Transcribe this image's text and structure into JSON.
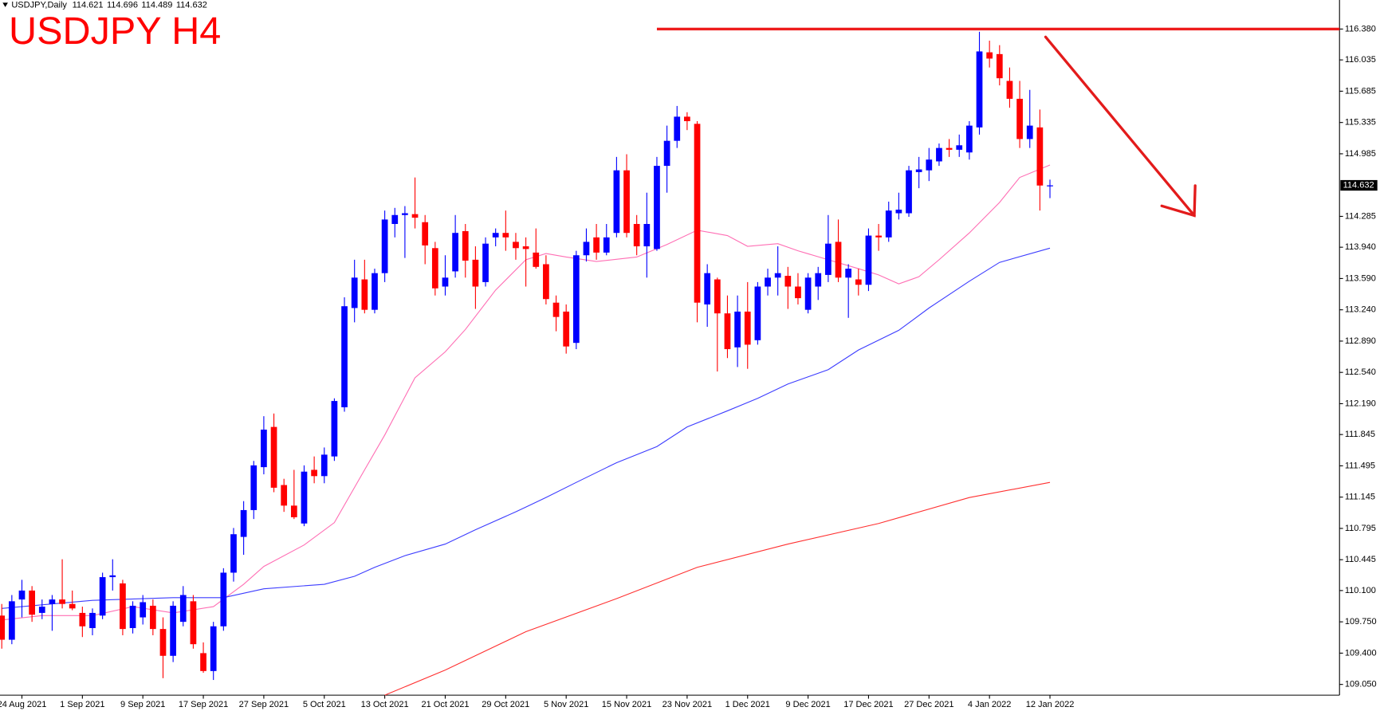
{
  "chart_data": {
    "type": "candlestick",
    "header_symbol": "USDJPY,Daily",
    "title": "USDJPY H4",
    "up_color": "#0000ff",
    "down_color": "#ff0000",
    "ylim": [
      108.93,
      116.705
    ],
    "yticks": [
      {
        "value": 116.38,
        "label": "116.380"
      },
      116.035,
      115.685,
      115.335,
      114.985,
      114.285,
      {
        "value": 113.94,
        "label": "113.940"
      },
      {
        "value": 113.59,
        "label": "113.590"
      },
      {
        "value": 113.24,
        "label": "113.240"
      },
      {
        "value": 112.89,
        "label": "112.890"
      },
      {
        "value": 112.54,
        "label": "112.540"
      },
      {
        "value": 112.19,
        "label": "112.190"
      },
      111.845,
      111.495,
      111.145,
      110.795,
      110.445,
      {
        "value": 110.1,
        "label": "110.100"
      },
      {
        "value": 109.75,
        "label": "109.750"
      },
      {
        "value": 109.4,
        "label": "109.400"
      },
      {
        "value": 109.05,
        "label": "109.050"
      }
    ],
    "categories": [
      null,
      null,
      "24 Aug 2021",
      null,
      null,
      null,
      null,
      null,
      "1 Sep 2021",
      null,
      null,
      null,
      null,
      null,
      "9 Sep 2021",
      null,
      null,
      null,
      null,
      null,
      "17 Sep 2021",
      null,
      null,
      null,
      null,
      null,
      "27 Sep 2021",
      null,
      null,
      null,
      null,
      null,
      "5 Oct 2021",
      null,
      null,
      null,
      null,
      null,
      "13 Oct 2021",
      null,
      null,
      null,
      null,
      null,
      "21 Oct 2021",
      null,
      null,
      null,
      null,
      null,
      "29 Oct 2021",
      null,
      null,
      null,
      null,
      null,
      "5 Nov 2021",
      null,
      null,
      null,
      null,
      null,
      "15 Nov 2021",
      null,
      null,
      null,
      null,
      null,
      "23 Nov 2021",
      null,
      null,
      null,
      null,
      null,
      "1 Dec 2021",
      null,
      null,
      null,
      null,
      null,
      "9 Dec 2021",
      null,
      null,
      null,
      null,
      null,
      "17 Dec 2021",
      null,
      null,
      null,
      null,
      null,
      "27 Dec 2021",
      null,
      null,
      null,
      null,
      null,
      "4 Jan 2022",
      null,
      null,
      null,
      null,
      null,
      "12 Jan 2022"
    ],
    "ohlc": [
      [
        109.82,
        109.95,
        109.45,
        109.55
      ],
      [
        109.55,
        110.05,
        109.5,
        109.98
      ],
      [
        110.0,
        110.22,
        109.8,
        110.1
      ],
      [
        110.1,
        110.15,
        109.75,
        109.83
      ],
      [
        109.85,
        110.0,
        109.78,
        109.92
      ],
      [
        109.95,
        110.05,
        109.65,
        110.0
      ],
      [
        110.0,
        110.45,
        109.9,
        109.95
      ],
      [
        109.95,
        110.1,
        109.88,
        109.9
      ],
      [
        109.85,
        109.92,
        109.58,
        109.7
      ],
      [
        109.68,
        109.9,
        109.6,
        109.85
      ],
      [
        109.82,
        110.3,
        109.78,
        110.25
      ],
      [
        110.25,
        110.45,
        110.1,
        110.27
      ],
      [
        110.18,
        110.22,
        109.6,
        109.67
      ],
      [
        109.68,
        109.98,
        109.62,
        109.93
      ],
      [
        109.8,
        110.05,
        109.72,
        109.97
      ],
      [
        109.93,
        110.0,
        109.6,
        109.67
      ],
      [
        109.67,
        109.8,
        109.12,
        109.37
      ],
      [
        109.37,
        109.98,
        109.3,
        109.93
      ],
      [
        109.75,
        110.15,
        109.7,
        110.05
      ],
      [
        109.98,
        110.05,
        109.45,
        109.5
      ],
      [
        109.4,
        109.52,
        109.18,
        109.2
      ],
      [
        109.2,
        109.75,
        109.1,
        109.7
      ],
      [
        109.7,
        110.35,
        109.65,
        110.3
      ],
      [
        110.3,
        110.8,
        110.2,
        110.73
      ],
      [
        110.7,
        111.1,
        110.5,
        111.0
      ],
      [
        111.0,
        111.55,
        110.9,
        111.5
      ],
      [
        111.48,
        112.05,
        111.4,
        111.9
      ],
      [
        111.93,
        112.08,
        111.2,
        111.25
      ],
      [
        111.28,
        111.35,
        110.98,
        111.05
      ],
      [
        111.05,
        111.45,
        110.9,
        110.92
      ],
      [
        110.85,
        111.5,
        110.82,
        111.43
      ],
      [
        111.45,
        111.6,
        111.3,
        111.38
      ],
      [
        111.38,
        111.7,
        111.3,
        111.62
      ],
      [
        111.6,
        112.25,
        111.55,
        112.22
      ],
      [
        112.15,
        113.38,
        112.1,
        113.28
      ],
      [
        113.26,
        113.8,
        113.1,
        113.6
      ],
      [
        113.58,
        113.8,
        113.2,
        113.24
      ],
      [
        113.24,
        113.7,
        113.2,
        113.65
      ],
      [
        113.65,
        114.35,
        113.55,
        114.25
      ],
      [
        114.2,
        114.38,
        114.05,
        114.3
      ],
      [
        114.3,
        114.4,
        113.82,
        114.32
      ],
      [
        114.31,
        114.72,
        114.15,
        114.27
      ],
      [
        114.22,
        114.3,
        113.75,
        113.96
      ],
      [
        113.93,
        114.0,
        113.4,
        113.48
      ],
      [
        113.5,
        113.85,
        113.4,
        113.6
      ],
      [
        113.67,
        114.3,
        113.6,
        114.1
      ],
      [
        114.12,
        114.2,
        113.6,
        113.79
      ],
      [
        113.8,
        113.95,
        113.25,
        113.5
      ],
      [
        113.55,
        114.05,
        113.5,
        113.98
      ],
      [
        114.05,
        114.15,
        113.95,
        114.1
      ],
      [
        114.1,
        114.35,
        113.9,
        114.05
      ],
      [
        114.0,
        114.1,
        113.8,
        113.93
      ],
      [
        113.95,
        114.05,
        113.5,
        113.92
      ],
      [
        113.88,
        114.15,
        113.7,
        113.72
      ],
      [
        113.75,
        113.85,
        113.3,
        113.36
      ],
      [
        113.32,
        113.4,
        113.0,
        113.16
      ],
      [
        113.22,
        113.3,
        112.75,
        112.83
      ],
      [
        112.87,
        113.9,
        112.8,
        113.85
      ],
      [
        113.85,
        114.15,
        113.78,
        114.0
      ],
      [
        114.05,
        114.2,
        113.8,
        113.88
      ],
      [
        113.88,
        114.2,
        113.85,
        114.05
      ],
      [
        114.1,
        114.95,
        114.05,
        114.8
      ],
      [
        114.8,
        114.98,
        114.05,
        114.1
      ],
      [
        114.2,
        114.3,
        113.85,
        113.95
      ],
      [
        113.95,
        114.55,
        113.6,
        114.2
      ],
      [
        113.92,
        114.95,
        113.9,
        114.85
      ],
      [
        114.85,
        115.3,
        114.55,
        115.13
      ],
      [
        115.13,
        115.52,
        115.05,
        115.4
      ],
      [
        115.4,
        115.45,
        115.25,
        115.35
      ],
      [
        115.32,
        115.35,
        113.1,
        113.32
      ],
      [
        113.3,
        113.75,
        113.05,
        113.65
      ],
      [
        113.58,
        113.6,
        112.55,
        113.2
      ],
      [
        113.2,
        113.4,
        112.7,
        112.8
      ],
      [
        112.82,
        113.4,
        112.6,
        113.22
      ],
      [
        113.22,
        113.55,
        112.58,
        112.85
      ],
      [
        112.9,
        113.55,
        112.85,
        113.5
      ],
      [
        113.5,
        113.7,
        113.4,
        113.6
      ],
      [
        113.6,
        113.95,
        113.4,
        113.65
      ],
      [
        113.62,
        113.72,
        113.25,
        113.5
      ],
      [
        113.5,
        113.65,
        113.3,
        113.37
      ],
      [
        113.24,
        113.65,
        113.2,
        113.6
      ],
      [
        113.5,
        113.72,
        113.35,
        113.65
      ],
      [
        113.63,
        114.3,
        113.55,
        113.98
      ],
      [
        114.0,
        114.25,
        113.55,
        113.6
      ],
      [
        113.6,
        113.75,
        113.15,
        113.7
      ],
      [
        113.58,
        113.7,
        113.4,
        113.52
      ],
      [
        113.52,
        114.15,
        113.45,
        114.07
      ],
      [
        114.07,
        114.2,
        113.9,
        114.05
      ],
      [
        114.05,
        114.45,
        114.0,
        114.35
      ],
      [
        114.32,
        114.55,
        114.25,
        114.36
      ],
      [
        114.32,
        114.85,
        114.28,
        114.8
      ],
      [
        114.78,
        114.95,
        114.6,
        114.81
      ],
      [
        114.8,
        115.05,
        114.68,
        114.92
      ],
      [
        114.9,
        115.1,
        114.85,
        115.05
      ],
      [
        115.05,
        115.15,
        114.95,
        115.03
      ],
      [
        115.03,
        115.2,
        114.95,
        115.08
      ],
      [
        115.0,
        115.35,
        114.92,
        115.3
      ],
      [
        115.28,
        116.35,
        115.2,
        116.13
      ],
      [
        116.12,
        116.25,
        115.95,
        116.05
      ],
      [
        116.1,
        116.2,
        115.75,
        115.83
      ],
      [
        115.8,
        115.95,
        115.5,
        115.6
      ],
      [
        115.6,
        115.8,
        115.05,
        115.15
      ],
      [
        115.15,
        115.7,
        115.05,
        115.3
      ],
      [
        115.28,
        115.48,
        114.35,
        114.63
      ],
      [
        114.621,
        114.696,
        114.489,
        114.632
      ]
    ],
    "overlays": [
      {
        "color": "#ff6eb4",
        "x": [
          0,
          4,
          9,
          13,
          17,
          21,
          24,
          26,
          30,
          33,
          36,
          38,
          41,
          44,
          46,
          49,
          52,
          54,
          56,
          59,
          63,
          66,
          69,
          72,
          74,
          77,
          79,
          82,
          85,
          87,
          89,
          91,
          93,
          96,
          99,
          101,
          104
        ],
        "values": [
          109.77,
          109.82,
          109.82,
          109.92,
          109.85,
          109.92,
          110.17,
          110.37,
          110.61,
          110.86,
          111.45,
          111.84,
          112.48,
          112.77,
          113.02,
          113.46,
          113.8,
          113.87,
          113.83,
          113.78,
          113.83,
          113.97,
          114.13,
          114.07,
          113.95,
          113.98,
          113.9,
          113.8,
          113.7,
          113.63,
          113.53,
          113.61,
          113.8,
          114.1,
          114.44,
          114.72,
          114.86
        ]
      },
      {
        "color": "#3c3cff",
        "x": [
          0,
          9,
          17,
          22,
          26,
          32,
          35,
          37,
          40,
          44,
          47,
          51,
          54,
          57,
          61,
          65,
          68,
          72,
          75,
          78,
          82,
          85,
          89,
          92,
          96,
          99,
          104
        ],
        "values": [
          109.9,
          109.99,
          110.02,
          110.02,
          110.12,
          110.17,
          110.26,
          110.36,
          110.49,
          110.62,
          110.78,
          110.98,
          111.14,
          111.31,
          111.53,
          111.71,
          111.93,
          112.11,
          112.25,
          112.41,
          112.57,
          112.79,
          113.01,
          113.26,
          113.56,
          113.77,
          113.93
        ]
      },
      {
        "color": "#ff3030",
        "x": [
          38,
          44,
          52,
          61,
          69,
          78,
          87,
          96,
          104
        ],
        "values": [
          108.93,
          109.21,
          109.64,
          110.01,
          110.36,
          110.62,
          110.85,
          111.14,
          111.31
        ]
      }
    ],
    "resistance": {
      "value": 116.38,
      "from_index": 65,
      "color": "#ee1c1c"
    }
  }
}
